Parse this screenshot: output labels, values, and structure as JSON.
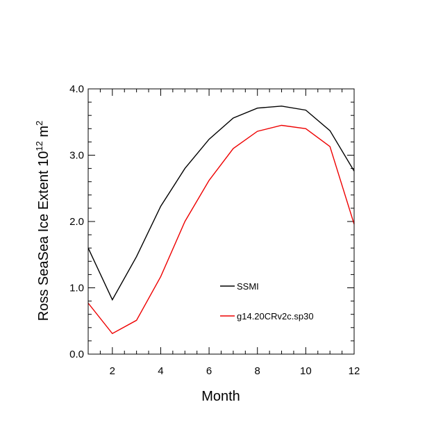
{
  "chart_data": {
    "type": "line",
    "title": "",
    "xlabel": "Month",
    "ylabel": {
      "prefix": "Ross SeaSea Ice Extent 10",
      "exp1": "12",
      "mid": " m",
      "exp2": "2"
    },
    "xlim": [
      1,
      12
    ],
    "ylim": [
      0,
      4
    ],
    "xticks": [
      {
        "value": 2,
        "label": "2"
      },
      {
        "value": 4,
        "label": "4"
      },
      {
        "value": 6,
        "label": "6"
      },
      {
        "value": 8,
        "label": "8"
      },
      {
        "value": 10,
        "label": "10"
      },
      {
        "value": 12,
        "label": "12"
      }
    ],
    "yticks": [
      {
        "value": 0,
        "label": "0.0"
      },
      {
        "value": 1,
        "label": "1.0"
      },
      {
        "value": 2,
        "label": "2.0"
      },
      {
        "value": 3,
        "label": "3.0"
      },
      {
        "value": 4,
        "label": "4.0"
      }
    ],
    "x": [
      1,
      2,
      3,
      4,
      5,
      6,
      7,
      8,
      9,
      10,
      11,
      12
    ],
    "series": [
      {
        "name": "SSMI",
        "color": "#000000",
        "values": [
          1.6,
          0.82,
          1.47,
          2.23,
          2.8,
          3.24,
          3.56,
          3.71,
          3.74,
          3.68,
          3.37,
          2.76
        ]
      },
      {
        "name": "g14.20CRv2c.sp30",
        "color": "#ee0000",
        "values": [
          0.77,
          0.31,
          0.51,
          1.17,
          2.0,
          2.62,
          3.1,
          3.36,
          3.45,
          3.4,
          3.13,
          1.96
        ]
      }
    ],
    "legend_position": "lower-right",
    "grid": false
  }
}
